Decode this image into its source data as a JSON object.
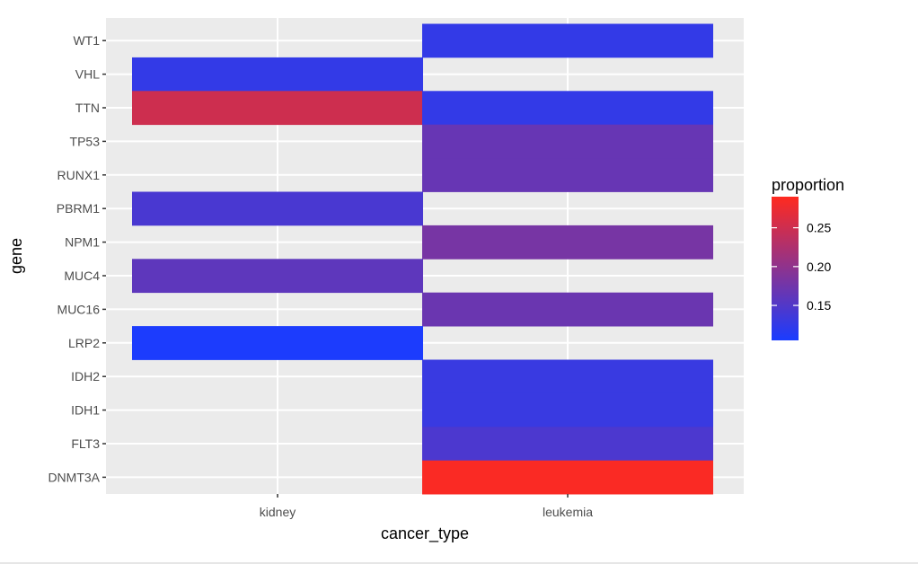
{
  "chart_data": {
    "type": "heatmap",
    "title": "",
    "xlabel": "cancer_type",
    "ylabel": "gene",
    "x_categories": [
      "kidney",
      "leukemia"
    ],
    "y_categories": [
      "WT1",
      "VHL",
      "TTN",
      "TP53",
      "RUNX1",
      "PBRM1",
      "NPM1",
      "MUC4",
      "MUC16",
      "LRP2",
      "IDH2",
      "IDH1",
      "FLT3",
      "DNMT3A"
    ],
    "cells": [
      {
        "x": "leukemia",
        "y": "WT1",
        "value": 0.125
      },
      {
        "x": "kidney",
        "y": "VHL",
        "value": 0.125
      },
      {
        "x": "kidney",
        "y": "TTN",
        "value": 0.25
      },
      {
        "x": "leukemia",
        "y": "TTN",
        "value": 0.125
      },
      {
        "x": "leukemia",
        "y": "TP53",
        "value": 0.167
      },
      {
        "x": "leukemia",
        "y": "RUNX1",
        "value": 0.167
      },
      {
        "x": "kidney",
        "y": "PBRM1",
        "value": 0.143
      },
      {
        "x": "leukemia",
        "y": "NPM1",
        "value": 0.18
      },
      {
        "x": "kidney",
        "y": "MUC4",
        "value": 0.16
      },
      {
        "x": "leukemia",
        "y": "MUC16",
        "value": 0.17
      },
      {
        "x": "kidney",
        "y": "LRP2",
        "value": 0.107
      },
      {
        "x": "leukemia",
        "y": "IDH2",
        "value": 0.13
      },
      {
        "x": "leukemia",
        "y": "IDH1",
        "value": 0.13
      },
      {
        "x": "leukemia",
        "y": "FLT3",
        "value": 0.145
      },
      {
        "x": "leukemia",
        "y": "DNMT3A",
        "value": 0.286
      }
    ],
    "legend": {
      "title": "proportion",
      "position": "right",
      "low_color": "#1a3cff",
      "high_color": "#ff2a1f",
      "range": [
        0.105,
        0.29
      ],
      "breaks": [
        0.15,
        0.2,
        0.25
      ],
      "break_labels": [
        "0.15",
        "0.20",
        "0.25"
      ]
    },
    "panel_background": "#ebebeb",
    "grid_color": "#ffffff",
    "grid": true
  }
}
